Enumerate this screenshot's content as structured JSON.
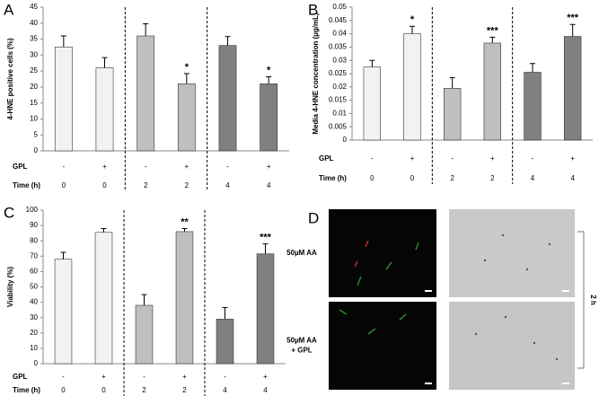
{
  "panels": [
    "A",
    "B",
    "C",
    "D"
  ],
  "chart_data": [
    {
      "type": "bar",
      "ylabel": "4-HNE positive cells (%)",
      "categories": [
        "GPL - / 0 h",
        "GPL + / 0 h",
        "GPL - / 2 h",
        "GPL + / 2 h",
        "GPL - / 4 h",
        "GPL + / 4 h"
      ],
      "x_rows": [
        {
          "label": "GPL",
          "values": [
            "-",
            "+",
            "-",
            "+",
            "-",
            "+"
          ]
        },
        {
          "label": "Time (h)",
          "values": [
            "0",
            "0",
            "2",
            "2",
            "4",
            "4"
          ]
        }
      ],
      "values": [
        32.5,
        26,
        36,
        21,
        33,
        21
      ],
      "errors": [
        3.5,
        3.2,
        3.8,
        3.2,
        2.8,
        2.2
      ],
      "annotations": [
        null,
        null,
        null,
        "*",
        null,
        "*"
      ],
      "colors": [
        "#f2f2f2",
        "#f2f2f2",
        "#bfbfbf",
        "#bfbfbf",
        "#808080",
        "#808080"
      ],
      "ylim": [
        0,
        45
      ],
      "yticks": [
        0,
        5,
        10,
        15,
        20,
        25,
        30,
        35,
        40,
        45
      ]
    },
    {
      "type": "bar",
      "ylabel": "Media 4-HNE concentration (µg/mL)",
      "categories": [
        "GPL - / 0 h",
        "GPL + / 0 h",
        "GPL - / 2 h",
        "GPL + / 2 h",
        "GPL - / 4 h",
        "GPL + / 4 h"
      ],
      "x_rows": [
        {
          "label": "GPL",
          "values": [
            "-",
            "+",
            "-",
            "+",
            "-",
            "+"
          ]
        },
        {
          "label": "Time (h)",
          "values": [
            "0",
            "0",
            "2",
            "2",
            "4",
            "4"
          ]
        }
      ],
      "values": [
        0.0275,
        0.04,
        0.0195,
        0.0365,
        0.0255,
        0.039
      ],
      "errors": [
        0.0025,
        0.0028,
        0.004,
        0.0022,
        0.0033,
        0.0045
      ],
      "annotations": [
        null,
        "*",
        null,
        "***",
        null,
        "***"
      ],
      "colors": [
        "#f2f2f2",
        "#f2f2f2",
        "#bfbfbf",
        "#bfbfbf",
        "#808080",
        "#808080"
      ],
      "ylim": [
        0,
        0.05
      ],
      "yticks": [
        0,
        0.005,
        0.01,
        0.015,
        0.02,
        0.025,
        0.03,
        0.035,
        0.04,
        0.045,
        0.05
      ]
    },
    {
      "type": "bar",
      "ylabel": "Viability (%)",
      "categories": [
        "GPL - / 0 h",
        "GPL + / 0 h",
        "GPL - / 2 h",
        "GPL + / 2 h",
        "GPL - / 4 h",
        "GPL + / 4 h"
      ],
      "x_rows": [
        {
          "label": "GPL",
          "values": [
            "-",
            "+",
            "-",
            "+",
            "-",
            "+"
          ]
        },
        {
          "label": "Time (h)",
          "values": [
            "0",
            "0",
            "2",
            "2",
            "4",
            "4"
          ]
        }
      ],
      "values": [
        68,
        85.5,
        38,
        86,
        29,
        71.5
      ],
      "errors": [
        4.5,
        2.5,
        7,
        2,
        7.5,
        6.5
      ],
      "annotations": [
        null,
        null,
        null,
        "**",
        null,
        "***"
      ],
      "colors": [
        "#f2f2f2",
        "#f2f2f2",
        "#bfbfbf",
        "#bfbfbf",
        "#808080",
        "#808080"
      ],
      "ylim": [
        0,
        100
      ],
      "yticks": [
        0,
        10,
        20,
        30,
        40,
        50,
        60,
        70,
        80,
        90,
        100
      ]
    }
  ],
  "micrographs": {
    "row_labels": [
      [
        "50µM AA"
      ],
      [
        "50µM AA",
        "+ GPL"
      ]
    ],
    "time_label": "2 h"
  }
}
